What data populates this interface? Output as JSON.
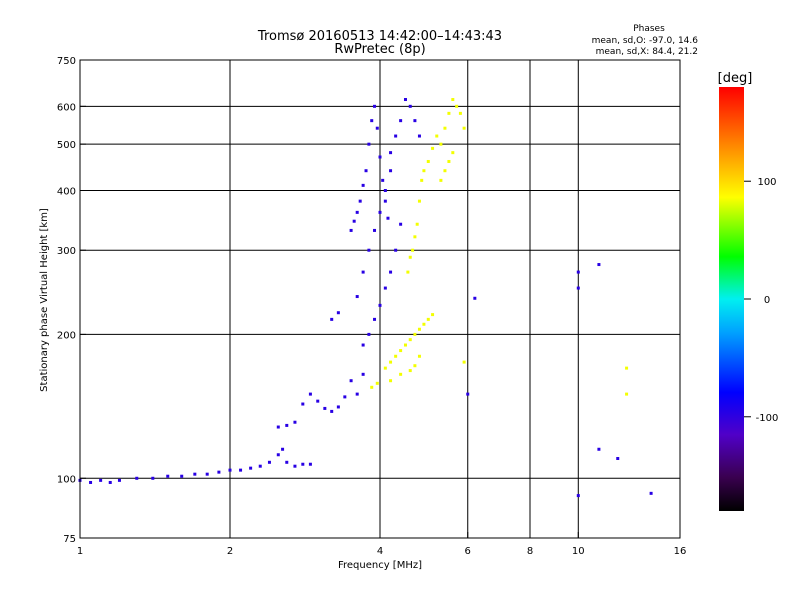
{
  "header": {
    "title_line1": "Tromsø 20160513 14:42:00–14:43:43",
    "title_line2": "RwPretec (8p)",
    "stats_title": "Phases",
    "stats_o": "mean, sd,O: -97.0, 14.6",
    "stats_x": "mean, sd,X:  84.4, 21.2"
  },
  "colorbar": {
    "label": "[deg]",
    "min": -180,
    "max": 180,
    "ticks": [
      {
        "value": 100,
        "label": "100"
      },
      {
        "value": 0,
        "label": "0"
      },
      {
        "value": -100,
        "label": "-100"
      }
    ]
  },
  "chart_data": {
    "type": "scatter",
    "title": "Tromsø 20160513 14:42:00–14:43:43",
    "subtitle": "RwPretec (8p)",
    "xlabel": "Frequency [MHz]",
    "ylabel": "Stationary phase Virtual Height [km]",
    "x_scale": "log",
    "y_scale": "log",
    "xlim": [
      1,
      16
    ],
    "ylim": [
      75,
      750
    ],
    "xticks": [
      1,
      2,
      4,
      6,
      8,
      10,
      16
    ],
    "xtick_labels": [
      "1",
      "2",
      "4",
      "6",
      "8",
      "10",
      "16"
    ],
    "x_gridlines": [
      2,
      4,
      6,
      8,
      10
    ],
    "yticks": [
      75,
      100,
      200,
      300,
      400,
      500,
      600,
      750
    ],
    "ytick_labels": [
      "75",
      "100",
      "200",
      "300",
      "400",
      "500",
      "600",
      "750"
    ],
    "y_gridlines": [
      100,
      200,
      300,
      400,
      500,
      600
    ],
    "grid": true,
    "color_encoding": "phase [deg], rainbow scale -180 to 180",
    "series": [
      {
        "name": "O",
        "phase": -97,
        "points": [
          [
            1.0,
            99
          ],
          [
            1.05,
            98
          ],
          [
            1.1,
            99
          ],
          [
            1.15,
            98
          ],
          [
            1.2,
            99
          ],
          [
            1.3,
            100
          ],
          [
            1.4,
            100
          ],
          [
            1.5,
            101
          ],
          [
            1.6,
            101
          ],
          [
            1.7,
            102
          ],
          [
            1.8,
            102
          ],
          [
            1.9,
            103
          ],
          [
            2.0,
            104
          ],
          [
            2.1,
            104
          ],
          [
            2.2,
            105
          ],
          [
            2.3,
            106
          ],
          [
            2.4,
            108
          ],
          [
            2.5,
            112
          ],
          [
            2.55,
            115
          ],
          [
            2.6,
            108
          ],
          [
            2.7,
            106
          ],
          [
            2.8,
            107
          ],
          [
            2.9,
            107
          ],
          [
            2.5,
            128
          ],
          [
            2.6,
            129
          ],
          [
            2.7,
            131
          ],
          [
            2.8,
            143
          ],
          [
            2.9,
            150
          ],
          [
            3.0,
            145
          ],
          [
            3.1,
            140
          ],
          [
            3.2,
            138
          ],
          [
            3.3,
            141
          ],
          [
            3.4,
            148
          ],
          [
            3.5,
            160
          ],
          [
            3.6,
            150
          ],
          [
            3.7,
            165
          ],
          [
            3.2,
            215
          ],
          [
            3.3,
            222
          ],
          [
            3.5,
            330
          ],
          [
            3.55,
            345
          ],
          [
            3.6,
            360
          ],
          [
            3.65,
            380
          ],
          [
            3.7,
            410
          ],
          [
            3.75,
            440
          ],
          [
            3.8,
            500
          ],
          [
            3.85,
            560
          ],
          [
            3.9,
            600
          ],
          [
            3.95,
            540
          ],
          [
            4.0,
            470
          ],
          [
            4.05,
            420
          ],
          [
            4.1,
            380
          ],
          [
            4.15,
            350
          ],
          [
            4.2,
            480
          ],
          [
            4.3,
            520
          ],
          [
            4.4,
            560
          ],
          [
            4.5,
            620
          ],
          [
            4.6,
            600
          ],
          [
            4.7,
            560
          ],
          [
            4.8,
            520
          ],
          [
            3.6,
            240
          ],
          [
            3.7,
            270
          ],
          [
            3.8,
            300
          ],
          [
            3.9,
            330
          ],
          [
            4.0,
            360
          ],
          [
            4.1,
            400
          ],
          [
            4.2,
            440
          ],
          [
            3.7,
            190
          ],
          [
            3.8,
            200
          ],
          [
            3.9,
            215
          ],
          [
            4.0,
            230
          ],
          [
            4.1,
            250
          ],
          [
            4.2,
            270
          ],
          [
            4.3,
            300
          ],
          [
            4.4,
            340
          ],
          [
            10.0,
            92
          ],
          [
            14.0,
            93
          ],
          [
            11.0,
            115
          ],
          [
            12.0,
            110
          ],
          [
            6.0,
            150
          ],
          [
            6.2,
            238
          ],
          [
            11.0,
            280
          ],
          [
            10.0,
            270
          ],
          [
            10.0,
            250
          ]
        ]
      },
      {
        "name": "X",
        "phase": 84,
        "points": [
          [
            4.1,
            170
          ],
          [
            4.2,
            175
          ],
          [
            4.3,
            180
          ],
          [
            4.4,
            185
          ],
          [
            4.5,
            190
          ],
          [
            4.6,
            195
          ],
          [
            4.7,
            200
          ],
          [
            4.8,
            205
          ],
          [
            4.9,
            210
          ],
          [
            5.0,
            215
          ],
          [
            5.1,
            220
          ],
          [
            4.2,
            160
          ],
          [
            4.4,
            165
          ],
          [
            4.6,
            168
          ],
          [
            4.7,
            172
          ],
          [
            4.8,
            180
          ],
          [
            4.55,
            270
          ],
          [
            4.6,
            290
          ],
          [
            4.65,
            300
          ],
          [
            4.7,
            320
          ],
          [
            4.75,
            340
          ],
          [
            4.8,
            380
          ],
          [
            4.85,
            420
          ],
          [
            4.9,
            440
          ],
          [
            5.0,
            460
          ],
          [
            5.1,
            490
          ],
          [
            5.2,
            520
          ],
          [
            5.3,
            500
          ],
          [
            5.4,
            540
          ],
          [
            5.5,
            580
          ],
          [
            5.6,
            620
          ],
          [
            5.7,
            600
          ],
          [
            5.8,
            580
          ],
          [
            5.9,
            540
          ],
          [
            5.3,
            420
          ],
          [
            5.4,
            440
          ],
          [
            5.5,
            460
          ],
          [
            5.6,
            480
          ],
          [
            3.85,
            155
          ],
          [
            3.95,
            158
          ],
          [
            5.9,
            175
          ],
          [
            12.5,
            170
          ],
          [
            12.5,
            150
          ]
        ]
      }
    ]
  }
}
